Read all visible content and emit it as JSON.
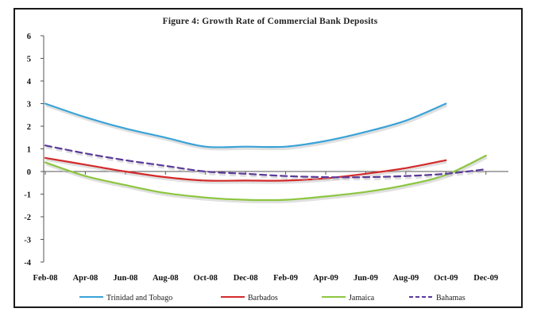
{
  "chart_data": {
    "type": "line",
    "title": "Figure 4: Growth Rate of Commercial Bank Deposits",
    "xlabel": "",
    "ylabel": "",
    "ylim": [
      -4,
      6
    ],
    "yticks": [
      "6",
      "5",
      "4",
      "3",
      "2",
      "1",
      "0",
      "-1",
      "-2",
      "-3",
      "-4"
    ],
    "categories": [
      "Feb-08",
      "Apr-08",
      "Jun-08",
      "Aug-08",
      "Oct-08",
      "Dec-08",
      "Feb-09",
      "Apr-09",
      "Jun-09",
      "Aug-09",
      "Oct-09",
      "Dec-09"
    ],
    "grid": false,
    "legend_position": "bottom",
    "series": [
      {
        "name": "Trinidad and Tobago",
        "color": "#3aa3d8",
        "dash": "solid",
        "values": [
          3.0,
          2.4,
          1.9,
          1.5,
          1.1,
          1.1,
          1.1,
          1.35,
          1.75,
          2.25,
          3.0,
          null
        ]
      },
      {
        "name": "Barbados",
        "color": "#d42a2a",
        "dash": "solid",
        "values": [
          0.6,
          0.3,
          0.0,
          -0.25,
          -0.4,
          -0.4,
          -0.4,
          -0.3,
          -0.1,
          0.15,
          0.5,
          null
        ]
      },
      {
        "name": "Jamaica",
        "color": "#8cc63f",
        "dash": "solid",
        "values": [
          0.4,
          -0.2,
          -0.6,
          -0.95,
          -1.15,
          -1.25,
          -1.25,
          -1.1,
          -0.9,
          -0.6,
          -0.15,
          0.7
        ]
      },
      {
        "name": "Bahamas",
        "color": "#5b3a9a",
        "dash": "dashed",
        "values": [
          1.15,
          0.8,
          0.5,
          0.25,
          0.0,
          -0.1,
          -0.2,
          -0.25,
          -0.25,
          -0.2,
          -0.1,
          0.1
        ]
      }
    ]
  }
}
